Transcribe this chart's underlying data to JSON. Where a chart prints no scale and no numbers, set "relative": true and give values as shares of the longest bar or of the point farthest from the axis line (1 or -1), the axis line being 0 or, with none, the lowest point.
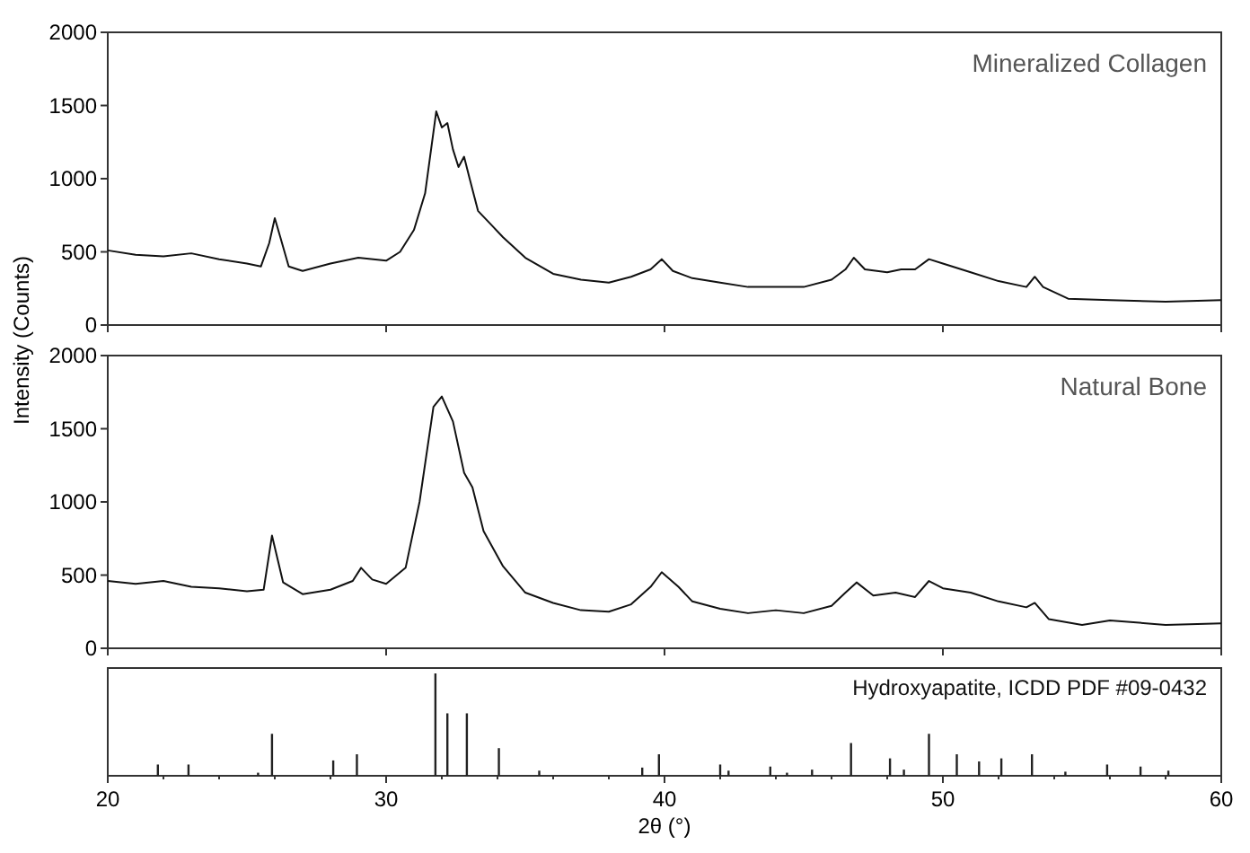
{
  "chart_data": [
    {
      "type": "line",
      "ylabel": "Intensity (Counts)",
      "xlim": [
        20,
        60
      ],
      "xticks": [
        20,
        30,
        40,
        50,
        60
      ],
      "ylim": [
        0,
        2000
      ],
      "yticks": [
        0,
        500,
        1000,
        1500,
        2000
      ],
      "tick_labels": "y",
      "grid": false,
      "annotations": [
        "Mineralized Collagen"
      ],
      "series": [
        {
          "color": "#111111",
          "x": [
            20,
            21,
            22,
            23,
            24,
            25,
            25.5,
            25.8,
            26.0,
            26.2,
            26.5,
            27,
            28,
            29,
            30,
            30.5,
            31,
            31.4,
            31.8,
            32.0,
            32.2,
            32.4,
            32.6,
            32.8,
            33.0,
            33.3,
            33.8,
            34.2,
            35,
            36,
            37,
            38,
            38.8,
            39.5,
            39.9,
            40.3,
            41,
            42,
            43,
            44,
            45,
            46,
            46.5,
            46.8,
            47.2,
            48,
            48.5,
            49,
            49.5,
            50,
            51,
            52,
            53,
            53.3,
            53.6,
            54.5,
            56,
            58,
            60
          ],
          "values": [
            510,
            480,
            470,
            490,
            450,
            420,
            400,
            560,
            730,
            600,
            400,
            370,
            420,
            460,
            440,
            500,
            650,
            900,
            1460,
            1350,
            1380,
            1200,
            1080,
            1150,
            1000,
            780,
            680,
            600,
            460,
            350,
            310,
            290,
            330,
            380,
            450,
            370,
            320,
            290,
            260,
            260,
            260,
            310,
            380,
            460,
            380,
            360,
            380,
            380,
            450,
            420,
            360,
            300,
            260,
            330,
            260,
            180,
            170,
            160,
            170
          ]
        }
      ]
    },
    {
      "type": "line",
      "xlim": [
        20,
        60
      ],
      "xticks": [
        20,
        30,
        40,
        50,
        60
      ],
      "ylim": [
        0,
        2000
      ],
      "yticks": [
        0,
        500,
        1000,
        1500,
        2000
      ],
      "tick_labels": "y",
      "grid": false,
      "annotations": [
        "Natural Bone"
      ],
      "series": [
        {
          "color": "#111111",
          "x": [
            20,
            21,
            22,
            23,
            24,
            25,
            25.6,
            25.9,
            26.3,
            27,
            28,
            28.8,
            29.1,
            29.5,
            30,
            30.7,
            31.2,
            31.7,
            32.0,
            32.4,
            32.8,
            33.1,
            33.5,
            34.2,
            35,
            36,
            37,
            38,
            38.8,
            39.5,
            39.9,
            40.5,
            41,
            42,
            43,
            44,
            45,
            46,
            46.5,
            46.9,
            47.5,
            48.3,
            49,
            49.5,
            50,
            51,
            52,
            53,
            53.3,
            53.8,
            55,
            56,
            58,
            60
          ],
          "values": [
            460,
            440,
            460,
            420,
            410,
            390,
            400,
            770,
            450,
            370,
            400,
            460,
            550,
            470,
            440,
            550,
            1000,
            1650,
            1720,
            1550,
            1200,
            1100,
            800,
            560,
            380,
            310,
            260,
            250,
            300,
            420,
            520,
            420,
            320,
            270,
            240,
            260,
            240,
            290,
            380,
            450,
            360,
            380,
            350,
            460,
            410,
            380,
            320,
            280,
            310,
            200,
            160,
            190,
            160,
            170
          ]
        }
      ]
    },
    {
      "type": "bar",
      "relative": true,
      "xlabel": "2θ (°)",
      "xlim": [
        20,
        60
      ],
      "xticks": [
        20,
        {
          "value": 22,
          "label": null
        },
        {
          "value": 24,
          "label": null
        },
        {
          "value": 26,
          "label": null
        },
        {
          "value": 28,
          "label": null
        },
        30,
        {
          "value": 32,
          "label": null
        },
        {
          "value": 34,
          "label": null
        },
        {
          "value": 36,
          "label": null
        },
        {
          "value": 38,
          "label": null
        },
        40,
        {
          "value": 42,
          "label": null
        },
        {
          "value": 44,
          "label": null
        },
        {
          "value": 46,
          "label": null
        },
        {
          "value": 48,
          "label": null
        },
        50,
        {
          "value": 52,
          "label": null
        },
        {
          "value": 54,
          "label": null
        },
        {
          "value": 56,
          "label": null
        },
        {
          "value": 58,
          "label": null
        },
        60
      ],
      "tick_labels": "x",
      "annotations": [
        "Hydroxyapatite, ICDD PDF #09-0432"
      ],
      "x": [
        21.8,
        22.9,
        25.4,
        25.9,
        28.1,
        28.95,
        31.77,
        32.2,
        32.9,
        34.05,
        35.5,
        39.2,
        39.8,
        42.0,
        42.3,
        43.8,
        44.4,
        45.3,
        46.7,
        48.1,
        48.6,
        49.5,
        50.5,
        51.3,
        52.1,
        53.2,
        54.4,
        55.9,
        57.1,
        58.1
      ],
      "values": [
        0.11,
        0.11,
        0.03,
        0.41,
        0.15,
        0.21,
        1,
        0.61,
        0.61,
        0.27,
        0.05,
        0.08,
        0.21,
        0.11,
        0.05,
        0.09,
        0.03,
        0.06,
        0.32,
        0.17,
        0.06,
        0.41,
        0.21,
        0.14,
        0.17,
        0.21,
        0.04,
        0.11,
        0.09,
        0.05
      ],
      "color": "#222222"
    }
  ]
}
